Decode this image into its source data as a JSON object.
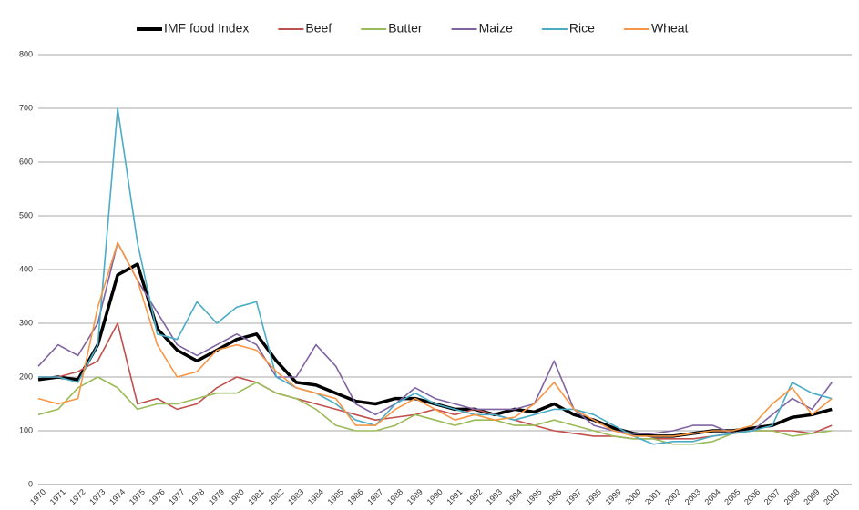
{
  "chart_data": {
    "type": "line",
    "x": [
      1970,
      1971,
      1972,
      1973,
      1974,
      1975,
      1976,
      1977,
      1978,
      1979,
      1980,
      1981,
      1982,
      1983,
      1984,
      1985,
      1986,
      1987,
      1988,
      1989,
      1990,
      1991,
      1992,
      1993,
      1994,
      1995,
      1996,
      1997,
      1998,
      1999,
      2000,
      2001,
      2002,
      2003,
      2004,
      2005,
      2006,
      2007,
      2008,
      2009,
      2010
    ],
    "xlim": [
      1970,
      2011
    ],
    "ylim": [
      0,
      800
    ],
    "yticks": [
      0,
      100,
      200,
      300,
      400,
      500,
      600,
      700,
      800
    ],
    "grid": true,
    "legend": "top",
    "series": [
      {
        "name": "IMF food Index",
        "color": "#000000",
        "values": [
          195,
          200,
          195,
          260,
          390,
          410,
          290,
          250,
          230,
          250,
          270,
          280,
          230,
          190,
          185,
          170,
          155,
          150,
          160,
          160,
          150,
          140,
          140,
          130,
          140,
          135,
          150,
          130,
          120,
          105,
          95,
          90,
          90,
          95,
          100,
          100,
          105,
          110,
          125,
          130,
          140
        ]
      },
      {
        "name": "Beef",
        "color": "#c0504d",
        "values": [
          200,
          200,
          210,
          230,
          300,
          150,
          160,
          140,
          150,
          180,
          200,
          190,
          170,
          160,
          150,
          140,
          130,
          120,
          125,
          130,
          140,
          130,
          140,
          130,
          120,
          110,
          100,
          95,
          90,
          90,
          85,
          85,
          85,
          85,
          90,
          95,
          100,
          100,
          100,
          95,
          110
        ]
      },
      {
        "name": "Butter",
        "color": "#9bbb59",
        "values": [
          130,
          140,
          180,
          200,
          180,
          140,
          150,
          150,
          160,
          170,
          170,
          190,
          170,
          160,
          140,
          110,
          100,
          100,
          110,
          130,
          120,
          110,
          120,
          120,
          110,
          110,
          120,
          110,
          100,
          90,
          85,
          85,
          75,
          75,
          80,
          95,
          100,
          100,
          90,
          95,
          100
        ]
      },
      {
        "name": "Maize",
        "color": "#8064a2",
        "values": [
          220,
          260,
          240,
          300,
          450,
          380,
          320,
          260,
          240,
          260,
          280,
          260,
          200,
          200,
          260,
          220,
          150,
          130,
          150,
          180,
          160,
          150,
          140,
          140,
          140,
          150,
          230,
          140,
          110,
          100,
          95,
          95,
          100,
          110,
          110,
          95,
          100,
          130,
          160,
          140,
          190
        ]
      },
      {
        "name": "Rice",
        "color": "#4bacc6",
        "values": [
          200,
          200,
          190,
          260,
          700,
          450,
          280,
          270,
          340,
          300,
          330,
          340,
          200,
          180,
          170,
          150,
          120,
          110,
          150,
          170,
          150,
          140,
          130,
          130,
          120,
          130,
          140,
          140,
          130,
          110,
          90,
          75,
          80,
          80,
          90,
          95,
          100,
          110,
          190,
          170,
          160
        ]
      },
      {
        "name": "Wheat",
        "color": "#f79646",
        "values": [
          160,
          150,
          160,
          330,
          450,
          380,
          260,
          200,
          210,
          250,
          260,
          250,
          210,
          180,
          170,
          160,
          110,
          110,
          140,
          160,
          140,
          120,
          130,
          120,
          125,
          150,
          190,
          140,
          120,
          100,
          90,
          90,
          90,
          95,
          100,
          100,
          110,
          150,
          180,
          130,
          160
        ]
      }
    ]
  }
}
